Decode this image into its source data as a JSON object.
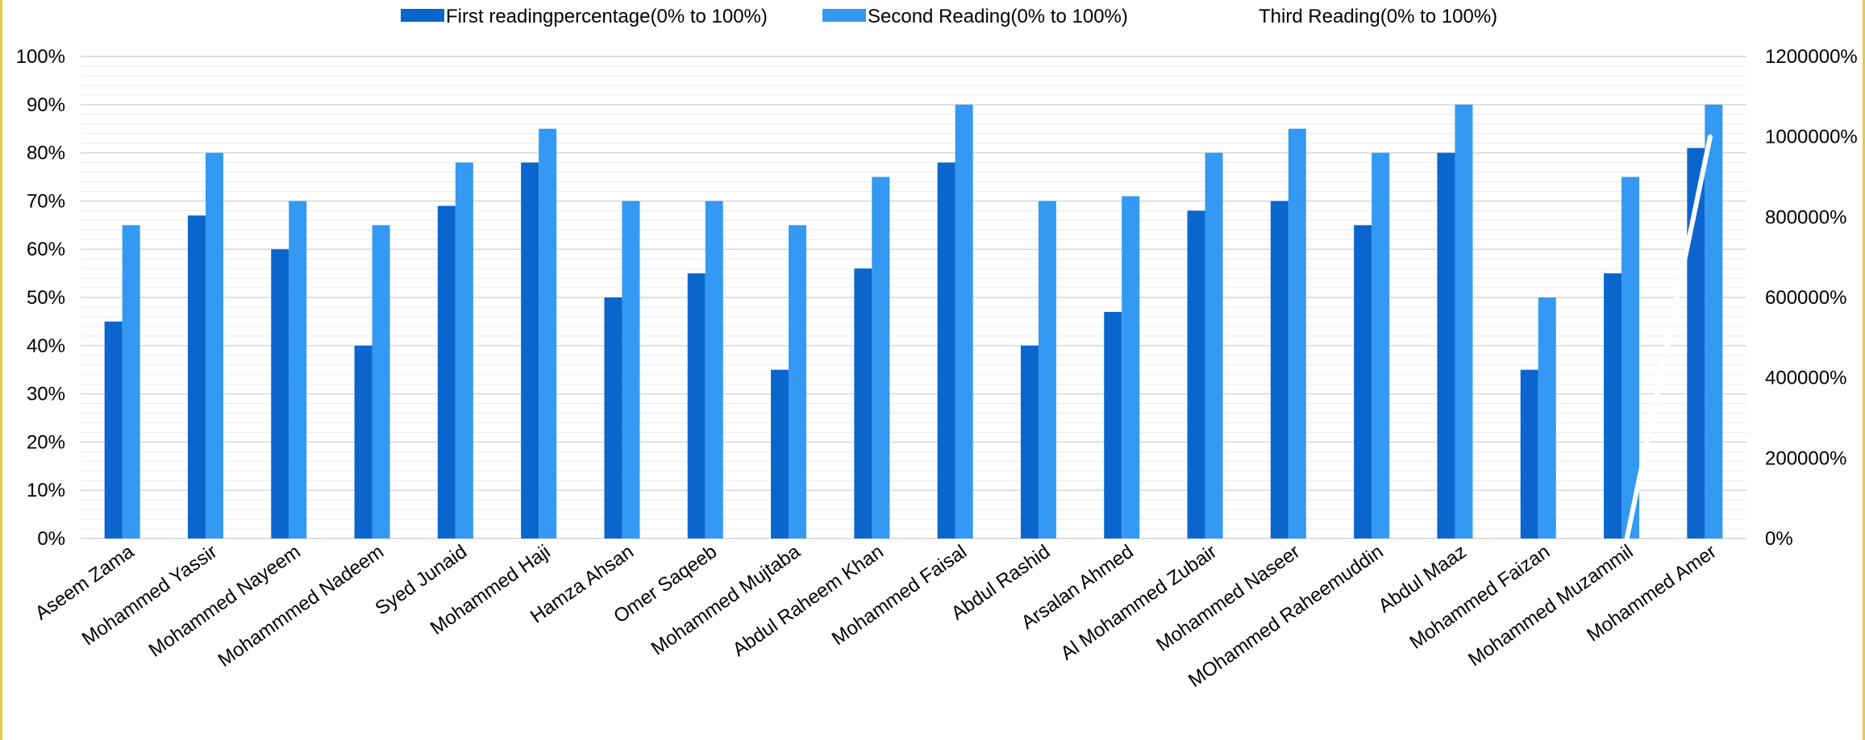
{
  "chart_data": {
    "type": "bar",
    "categories": [
      "Aseem Zama",
      "Mohammed Yassir",
      "Mohammed Nayeem",
      "Mohammmed Nadeem",
      "Syed Junaid",
      "Mohammed Haji",
      "Hamza Ahsan",
      "Omer Saqeeb",
      "Mohammed Mujtaba",
      "Abdul Raheem Khan",
      "Mohammed Faisal",
      "Abdul Rashid",
      "Arsalan Ahmed",
      "Al Mohammed Zubair",
      "Mohammed Naseer",
      "MOhammed Raheemuddin",
      "Abdul Maaz",
      "Mohammed Faizan",
      "Mohammed Muzammil",
      "Mohammed Amer"
    ],
    "series": [
      {
        "name": "First readingpercentage(0% to 100%)",
        "type": "bar",
        "axis": "left",
        "color": "#0a66cc",
        "values": [
          45,
          67,
          60,
          40,
          69,
          78,
          50,
          55,
          35,
          56,
          78,
          40,
          47,
          68,
          70,
          65,
          80,
          35,
          55,
          81
        ]
      },
      {
        "name": "Second Reading(0% to 100%)",
        "type": "bar",
        "axis": "left",
        "color": "#3399f3",
        "values": [
          65,
          80,
          70,
          65,
          78,
          85,
          70,
          70,
          65,
          75,
          90,
          70,
          71,
          80,
          85,
          80,
          90,
          50,
          75,
          90
        ]
      },
      {
        "name": "Third Reading(0% to 100%)",
        "type": "line",
        "axis": "right",
        "color": "#ffffff",
        "x": [
          "Mohammed Muzammil",
          "Mohammed Amer"
        ],
        "values": [
          0,
          1000000
        ]
      }
    ],
    "y_left": {
      "ylim": [
        0,
        100
      ],
      "ticks": [
        0,
        10,
        20,
        30,
        40,
        50,
        60,
        70,
        80,
        90,
        100
      ],
      "tick_labels": [
        "0%",
        "10%",
        "20%",
        "30%",
        "40%",
        "50%",
        "60%",
        "70%",
        "80%",
        "90%",
        "100%"
      ]
    },
    "y_right": {
      "ylim": [
        0,
        1200000
      ],
      "ticks": [
        0,
        200000,
        400000,
        600000,
        800000,
        1000000,
        1200000
      ],
      "tick_labels": [
        "0%",
        "200000%",
        "400000%",
        "600000%",
        "800000%",
        "1000000%",
        "1200000%"
      ]
    },
    "grid": true,
    "legend_position": "top"
  }
}
